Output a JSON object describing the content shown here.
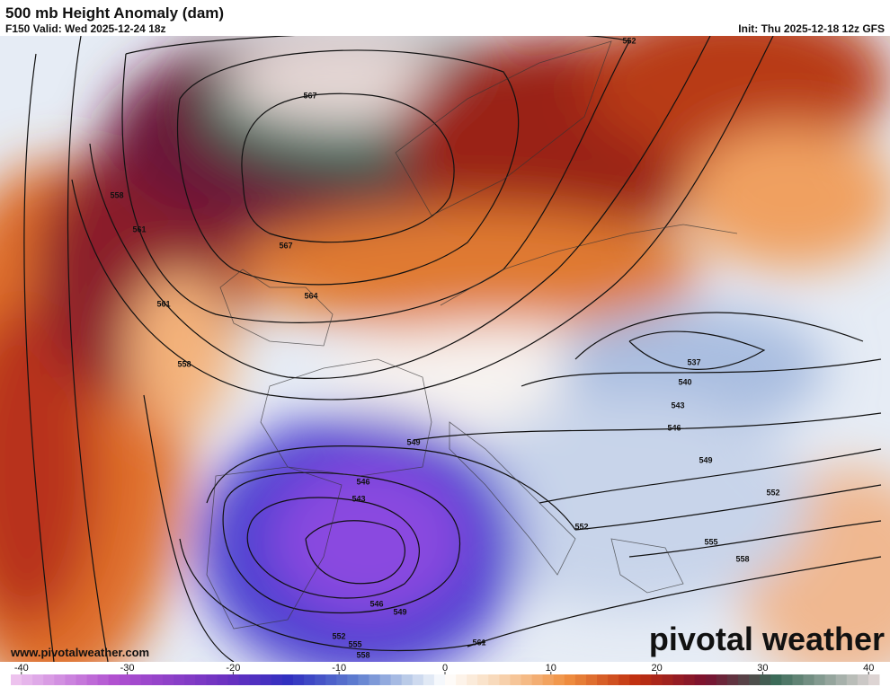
{
  "header": {
    "title": "500 mb Height Anomaly (dam)",
    "valid": "F150 Valid: Wed 2025-12-24 18z",
    "init": "Init: Thu 2025-12-18 12z GFS"
  },
  "contours": {
    "labels": [
      552,
      567,
      558,
      561,
      567,
      564,
      561,
      558,
      537,
      540,
      543,
      546,
      549,
      549,
      552,
      546,
      543,
      552,
      555,
      558,
      546,
      549,
      552,
      555,
      558,
      561
    ]
  },
  "footer": {
    "website": "www.pivotalweather.com",
    "logo": "pivotal weather"
  },
  "colorbar": {
    "lim": [
      -41,
      41
    ],
    "ticks": [
      -40,
      -30,
      -20,
      -10,
      0,
      10,
      20,
      30,
      40
    ]
  }
}
